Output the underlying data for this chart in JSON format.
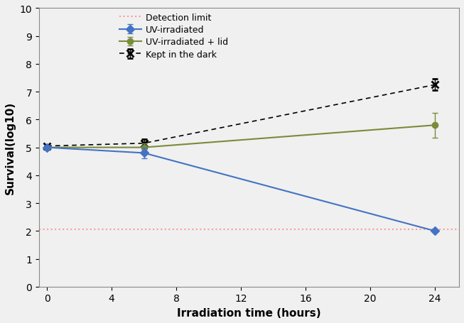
{
  "x": [
    0,
    6,
    24
  ],
  "uv_irradiated": [
    5.0,
    4.8,
    2.0
  ],
  "uv_irradiated_yerr": [
    0.0,
    0.2,
    0.0
  ],
  "uv_lid": [
    5.0,
    5.0,
    5.8
  ],
  "uv_lid_yerr": [
    0.0,
    0.15,
    0.45
  ],
  "dark": [
    5.05,
    5.15,
    7.25
  ],
  "dark_yerr": [
    0.0,
    0.15,
    0.2
  ],
  "detection_limit": 2.05,
  "uv_color": "#4472C4",
  "uv_lid_color": "#7A8B3A",
  "dark_color": "#000000",
  "detection_color": "#FF9999",
  "xlabel": "Irradiation time (hours)",
  "ylabel": "Survival(log10)",
  "xlim": [
    -0.5,
    25.5
  ],
  "ylim": [
    0,
    10
  ],
  "xticks": [
    0,
    4,
    8,
    12,
    16,
    20,
    24
  ],
  "yticks": [
    0,
    1,
    2,
    3,
    4,
    5,
    6,
    7,
    8,
    9,
    10
  ],
  "legend_uv": "UV-irradiated",
  "legend_uv_lid": "UV-irradiated + lid",
  "legend_dark": "Kept in the dark",
  "legend_detect": "Detection limit",
  "figsize": [
    6.53,
    4.56
  ],
  "dpi": 100
}
